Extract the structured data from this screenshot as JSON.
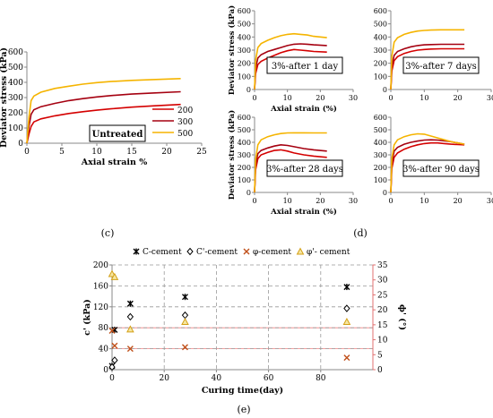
{
  "colors": {
    "s200": "#d40000",
    "s300": "#a50010",
    "s500": "#f5b400",
    "c_cement": "#000000",
    "cp_cement": "#000000",
    "phi_cement": "#c0501a",
    "phip_cement": "#d4a017",
    "refline": "#f08080",
    "grid": "#999999"
  },
  "chart_data": [
    {
      "id": "c",
      "type": "line",
      "annotation": "Untreated",
      "xlabel": "Axial strain %",
      "ylabel": "Deviator stress (kPa)",
      "xlim": [
        0,
        25
      ],
      "ylim": [
        0,
        600
      ],
      "xticks": [
        0,
        5,
        10,
        15,
        20,
        25
      ],
      "yticks": [
        0,
        100,
        200,
        300,
        400,
        500,
        600
      ],
      "panel_label": "(c)",
      "series": [
        {
          "name": "200",
          "color_key": "s200",
          "x": [
            0,
            0.3,
            0.6,
            1,
            2,
            4,
            6,
            8,
            10,
            12,
            15,
            18,
            22
          ],
          "y": [
            0,
            60,
            110,
            140,
            160,
            180,
            195,
            207,
            217,
            226,
            237,
            245,
            255
          ]
        },
        {
          "name": "300",
          "color_key": "s300",
          "x": [
            0,
            0.3,
            0.6,
            1,
            2,
            4,
            6,
            8,
            10,
            12,
            15,
            18,
            22
          ],
          "y": [
            0,
            110,
            190,
            220,
            240,
            262,
            280,
            293,
            304,
            313,
            323,
            330,
            338
          ]
        },
        {
          "name": "500",
          "color_key": "s500",
          "x": [
            0,
            0.3,
            0.6,
            1,
            2,
            4,
            6,
            8,
            10,
            12,
            15,
            18,
            22
          ],
          "y": [
            0,
            170,
            280,
            310,
            335,
            360,
            375,
            388,
            398,
            405,
            413,
            418,
            425
          ]
        }
      ]
    },
    {
      "id": "d1",
      "type": "line",
      "annotation": "3%-after 1 day",
      "xlabel": "Axial strain (%)",
      "ylabel": "Deviator stress (kPa)",
      "xlim": [
        0,
        30
      ],
      "ylim": [
        0,
        600
      ],
      "xticks": [
        0,
        10,
        20,
        30
      ],
      "yticks": [
        0,
        100,
        200,
        300,
        400,
        500,
        600
      ],
      "series": [
        {
          "name": "200",
          "color_key": "s200",
          "x": [
            0,
            0.3,
            1,
            2,
            4,
            6,
            8,
            10,
            12,
            14,
            16,
            18,
            22
          ],
          "y": [
            0,
            120,
            190,
            215,
            240,
            260,
            280,
            295,
            305,
            300,
            295,
            290,
            285
          ]
        },
        {
          "name": "300",
          "color_key": "s300",
          "x": [
            0,
            0.3,
            1,
            2,
            4,
            6,
            8,
            10,
            12,
            14,
            16,
            18,
            22
          ],
          "y": [
            0,
            160,
            240,
            265,
            290,
            305,
            320,
            335,
            345,
            348,
            345,
            340,
            335
          ]
        },
        {
          "name": "500",
          "color_key": "s500",
          "x": [
            0,
            0.3,
            1,
            2,
            4,
            6,
            8,
            10,
            12,
            14,
            16,
            18,
            22
          ],
          "y": [
            0,
            220,
            320,
            350,
            375,
            395,
            410,
            420,
            425,
            420,
            415,
            405,
            395
          ]
        }
      ]
    },
    {
      "id": "d7",
      "type": "line",
      "annotation": "3%-after 7 days",
      "xlabel": "",
      "ylabel": "",
      "xlim": [
        0,
        30
      ],
      "ylim": [
        0,
        600
      ],
      "xticks": [
        0,
        10,
        20,
        30
      ],
      "yticks": [
        0,
        100,
        200,
        300,
        400,
        500,
        600
      ],
      "series": [
        {
          "name": "200",
          "color_key": "s200",
          "x": [
            0,
            0.3,
            1,
            2,
            4,
            6,
            8,
            10,
            12,
            15,
            18,
            22
          ],
          "y": [
            0,
            140,
            220,
            250,
            275,
            290,
            300,
            305,
            308,
            310,
            310,
            310
          ]
        },
        {
          "name": "300",
          "color_key": "s300",
          "x": [
            0,
            0.3,
            1,
            2,
            4,
            6,
            8,
            10,
            12,
            15,
            18,
            22
          ],
          "y": [
            0,
            180,
            260,
            290,
            310,
            325,
            335,
            340,
            342,
            344,
            344,
            344
          ]
        },
        {
          "name": "500",
          "color_key": "s500",
          "x": [
            0,
            0.3,
            1,
            2,
            4,
            6,
            8,
            10,
            12,
            15,
            18,
            22
          ],
          "y": [
            0,
            250,
            360,
            395,
            420,
            435,
            445,
            450,
            453,
            455,
            455,
            455
          ]
        }
      ]
    },
    {
      "id": "d28",
      "type": "line",
      "annotation": "3%-after 28 days",
      "xlabel": "Axial strain (%)",
      "ylabel": "Deviator stress (kPa)",
      "xlim": [
        0,
        30
      ],
      "ylim": [
        0,
        600
      ],
      "xticks": [
        0,
        10,
        20,
        30
      ],
      "yticks": [
        0,
        100,
        200,
        300,
        400,
        500,
        600
      ],
      "series": [
        {
          "name": "200",
          "color_key": "s200",
          "x": [
            0,
            0.3,
            1,
            2,
            4,
            6,
            8,
            10,
            12,
            15,
            18,
            22
          ],
          "y": [
            0,
            180,
            270,
            300,
            320,
            335,
            340,
            330,
            315,
            300,
            290,
            280
          ]
        },
        {
          "name": "300",
          "color_key": "s300",
          "x": [
            0,
            0.3,
            1,
            2,
            4,
            6,
            8,
            10,
            12,
            15,
            18,
            22
          ],
          "y": [
            0,
            220,
            310,
            335,
            355,
            370,
            380,
            375,
            365,
            350,
            340,
            330
          ]
        },
        {
          "name": "500",
          "color_key": "s500",
          "x": [
            0,
            0.3,
            1,
            2,
            4,
            6,
            8,
            10,
            12,
            15,
            18,
            22
          ],
          "y": [
            0,
            260,
            380,
            420,
            445,
            460,
            470,
            475,
            476,
            476,
            475,
            475
          ]
        }
      ]
    },
    {
      "id": "d90",
      "type": "line",
      "annotation": "3%-after 90 days",
      "xlabel": "",
      "ylabel": "",
      "xlim": [
        0,
        30
      ],
      "ylim": [
        0,
        600
      ],
      "xticks": [
        0,
        10,
        20,
        30
      ],
      "yticks": [
        0,
        100,
        200,
        300,
        400,
        500,
        600
      ],
      "panel_label": "(d)",
      "series": [
        {
          "name": "200",
          "color_key": "s200",
          "x": [
            0,
            0.3,
            1,
            2,
            4,
            6,
            8,
            10,
            12,
            14,
            16,
            18,
            20,
            22
          ],
          "y": [
            0,
            190,
            280,
            315,
            345,
            365,
            380,
            390,
            395,
            395,
            390,
            385,
            382,
            380
          ]
        },
        {
          "name": "300",
          "color_key": "s300",
          "x": [
            0,
            0.3,
            1,
            2,
            4,
            6,
            8,
            10,
            12,
            14,
            16,
            18,
            20,
            22
          ],
          "y": [
            0,
            230,
            330,
            360,
            385,
            400,
            410,
            418,
            420,
            418,
            412,
            405,
            395,
            385
          ]
        },
        {
          "name": "500",
          "color_key": "s500",
          "x": [
            0,
            0.3,
            1,
            2,
            4,
            6,
            8,
            10,
            12,
            14,
            16,
            18,
            20,
            22
          ],
          "y": [
            0,
            270,
            380,
            420,
            445,
            460,
            468,
            465,
            450,
            435,
            420,
            405,
            395,
            385
          ]
        }
      ]
    },
    {
      "id": "e",
      "type": "scatter",
      "xlabel": "Curing time(day)",
      "ylabel_left": "c' (kPa)",
      "ylabel_right": "ϕ' (°)",
      "xlim": [
        0,
        100
      ],
      "ylim_left": [
        0,
        200
      ],
      "ylim_right": [
        0,
        35
      ],
      "xticks": [
        0,
        20,
        40,
        60,
        80
      ],
      "yticks_left": [
        0,
        40,
        80,
        120,
        160,
        200
      ],
      "yticks_right": [
        0,
        5,
        10,
        15,
        20,
        25,
        30,
        35
      ],
      "panel_label": "(e)",
      "series": [
        {
          "name": "C-cement",
          "axis": "left",
          "marker": "star",
          "color_key": "c_cement",
          "x": [
            0,
            1,
            7,
            28,
            90
          ],
          "y": [
            7,
            76,
            126,
            139,
            158
          ]
        },
        {
          "name": "C'-cement",
          "axis": "left",
          "marker": "diamond",
          "color_key": "cp_cement",
          "x": [
            0,
            1,
            7,
            28,
            90
          ],
          "y": [
            5,
            18,
            101,
            104,
            117
          ]
        },
        {
          "name": "φ-cement",
          "axis": "right",
          "marker": "x",
          "color_key": "phi_cement",
          "x": [
            0,
            1,
            7,
            28,
            90
          ],
          "y": [
            13,
            8,
            7,
            7.5,
            4
          ]
        },
        {
          "name": "φ'- cement",
          "axis": "right",
          "marker": "triangle",
          "color_key": "phip_cement",
          "x": [
            0,
            1,
            7,
            28,
            90
          ],
          "y": [
            32,
            31,
            13.5,
            16,
            16
          ]
        }
      ]
    }
  ]
}
